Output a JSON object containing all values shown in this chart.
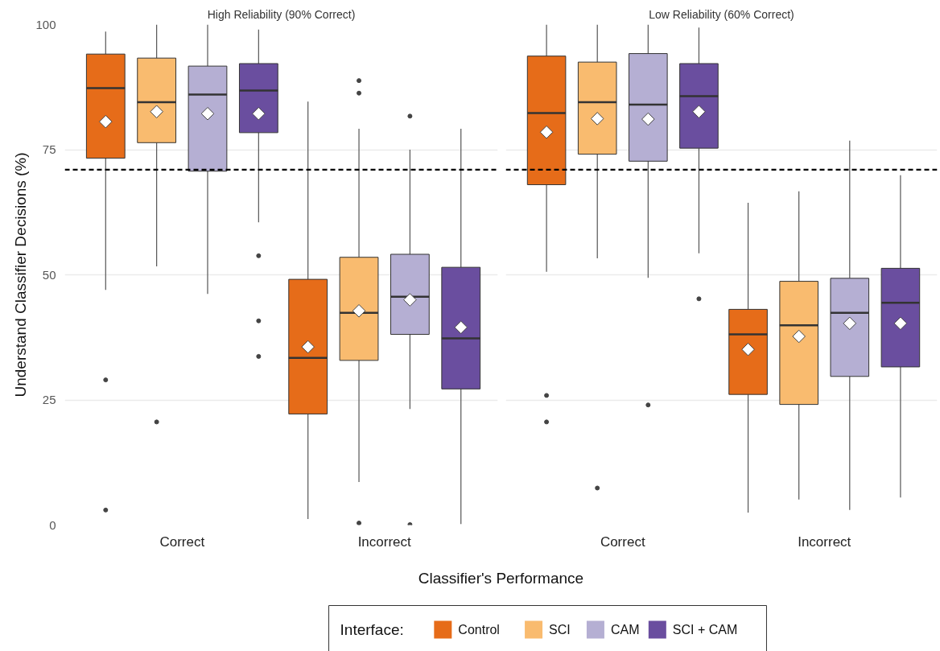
{
  "chart_data": [
    {
      "type": "box",
      "title": "High Reliability (90% Correct)",
      "ylabel": "Understand Classifier Decisions (%)",
      "xlabel": "Classifier's Performance",
      "legend_title": "Interface:",
      "legend": "bottom",
      "grid": "y",
      "categories": [
        "Correct",
        "Incorrect"
      ],
      "ylim": [
        0,
        100
      ],
      "yticks": [
        0,
        25,
        50,
        75,
        100
      ],
      "ref_lines": [
        {
          "axis": "y",
          "value": 71,
          "color": "#000000",
          "line_style": "dashed"
        }
      ],
      "series": [
        {
          "name": "Control",
          "color": "#e66c19",
          "boxes": [
            {
              "low": 47,
              "q1": 73.3,
              "median": 87.3,
              "q3": 94.1,
              "high": 98.6,
              "mean": 80.6,
              "outliers": [
                29,
                3
              ]
            },
            {
              "low": 1.2,
              "q1": 22.2,
              "median": 33.4,
              "q3": 49.1,
              "high": 84.6,
              "mean": 35.6
            }
          ]
        },
        {
          "name": "SCI",
          "color": "#f9bb6f",
          "boxes": [
            {
              "low": 51.7,
              "q1": 76.4,
              "median": 84.5,
              "q3": 93.3,
              "high": 100,
              "mean": 82.6,
              "outliers": [
                20.6
              ]
            },
            {
              "low": 8.6,
              "q1": 32.9,
              "median": 42.4,
              "q3": 53.5,
              "high": 79.2,
              "mean": 42.8,
              "outliers": [
                88.8,
                86.3,
                0.4
              ]
            }
          ]
        },
        {
          "name": "CAM",
          "color": "#b5afd3",
          "boxes": [
            {
              "low": 46.2,
              "q1": 70.7,
              "median": 86,
              "q3": 91.7,
              "high": 100,
              "mean": 82.2
            },
            {
              "low": 23.2,
              "q1": 38.1,
              "median": 45.6,
              "q3": 54.1,
              "high": 75,
              "mean": 45,
              "outliers": [
                81.7,
                0.1
              ]
            }
          ]
        },
        {
          "name": "SCI + CAM",
          "color": "#6a4e9f",
          "boxes": [
            {
              "low": 60.5,
              "q1": 78.4,
              "median": 86.8,
              "q3": 92.2,
              "high": 99,
              "mean": 82.2,
              "outliers": [
                53.8,
                40.8,
                33.7
              ]
            },
            {
              "low": 0.2,
              "q1": 27.2,
              "median": 37.3,
              "q3": 51.5,
              "high": 79.2,
              "mean": 39.5
            }
          ]
        }
      ]
    },
    {
      "type": "box",
      "title": "Low Reliability (60% Correct)",
      "grid": "y",
      "tick_labels": "x",
      "categories": [
        "Correct",
        "Incorrect"
      ],
      "ylim": [
        0,
        100
      ],
      "yticks": [
        0,
        25,
        50,
        75,
        100
      ],
      "ref_lines": [
        {
          "axis": "y",
          "value": 71,
          "color": "#000000",
          "line_style": "dashed"
        }
      ],
      "series": [
        {
          "color": "#e66c19",
          "boxes": [
            {
              "low": 50.6,
              "q1": 68,
              "median": 82.3,
              "q3": 93.7,
              "high": 100,
              "mean": 78.5,
              "outliers": [
                25.9,
                20.6
              ]
            },
            {
              "low": 2.5,
              "q1": 26.1,
              "median": 38.1,
              "q3": 43.1,
              "high": 64.4,
              "mean": 35.1
            }
          ]
        },
        {
          "color": "#f9bb6f",
          "boxes": [
            {
              "low": 53.3,
              "q1": 74.1,
              "median": 84.5,
              "q3": 92.5,
              "high": 100,
              "mean": 81.2,
              "outliers": [
                7.4
              ]
            },
            {
              "low": 5.1,
              "q1": 24.1,
              "median": 39.9,
              "q3": 48.7,
              "high": 66.7,
              "mean": 37.7
            }
          ]
        },
        {
          "color": "#b5afd3",
          "boxes": [
            {
              "low": 49.4,
              "q1": 72.7,
              "median": 84,
              "q3": 94.2,
              "high": 100,
              "mean": 81.1,
              "outliers": [
                24
              ]
            },
            {
              "low": 3,
              "q1": 29.7,
              "median": 42.4,
              "q3": 49.3,
              "high": 76.8,
              "mean": 40.3
            }
          ]
        },
        {
          "color": "#6a4e9f",
          "boxes": [
            {
              "low": 54.3,
              "q1": 75.3,
              "median": 85.7,
              "q3": 92.2,
              "high": 99.4,
              "mean": 82.6,
              "outliers": [
                45.2
              ]
            },
            {
              "low": 5.5,
              "q1": 31.6,
              "median": 44.4,
              "q3": 51.3,
              "high": 69.9,
              "mean": 40.3
            }
          ]
        }
      ]
    }
  ]
}
